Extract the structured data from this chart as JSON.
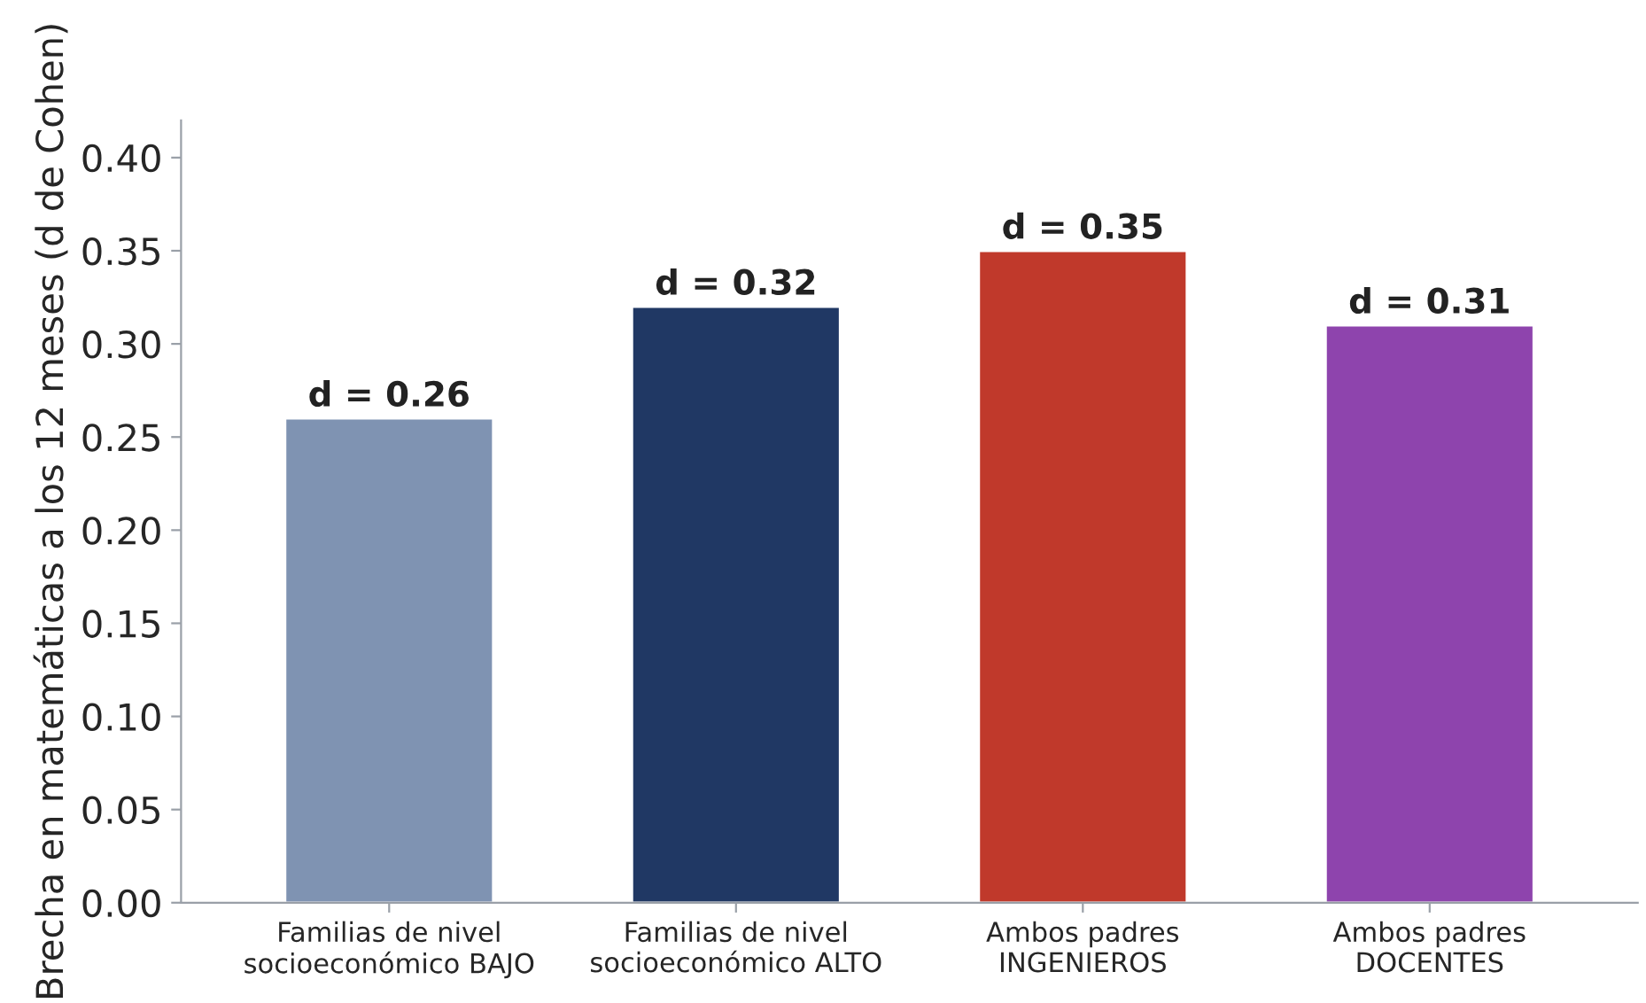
{
  "chart_data": {
    "type": "bar",
    "ylabel": "Brecha en matemáticas a los 12 meses (d de Cohen)",
    "categories": [
      "Familias de nivel\nsocioeconómico BAJO",
      "Familias de nivel\nsocioeconómico ALTO",
      "Ambos padres\nINGENIEROS",
      "Ambos padres\nDOCENTES"
    ],
    "values": [
      0.26,
      0.32,
      0.35,
      0.31
    ],
    "colors": [
      "#7f93b2",
      "#203864",
      "#c0392b",
      "#8e44ad"
    ],
    "value_labels": [
      "d = 0.26",
      "d = 0.32",
      "d = 0.35",
      "d = 0.31"
    ],
    "ylim": [
      0,
      0.42
    ],
    "yticks": [
      {
        "value": 0,
        "label": "0.00"
      },
      {
        "value": 0.05,
        "label": "0.05"
      },
      {
        "value": 0.1,
        "label": "0.10"
      },
      {
        "value": 0.15,
        "label": "0.15"
      },
      {
        "value": 0.2,
        "label": "0.20"
      },
      {
        "value": 0.25,
        "label": "0.25"
      },
      {
        "value": 0.3,
        "label": "0.30"
      },
      {
        "value": 0.35,
        "label": "0.35"
      },
      {
        "value": 0.4,
        "label": "0.40"
      }
    ],
    "grid": false
  }
}
